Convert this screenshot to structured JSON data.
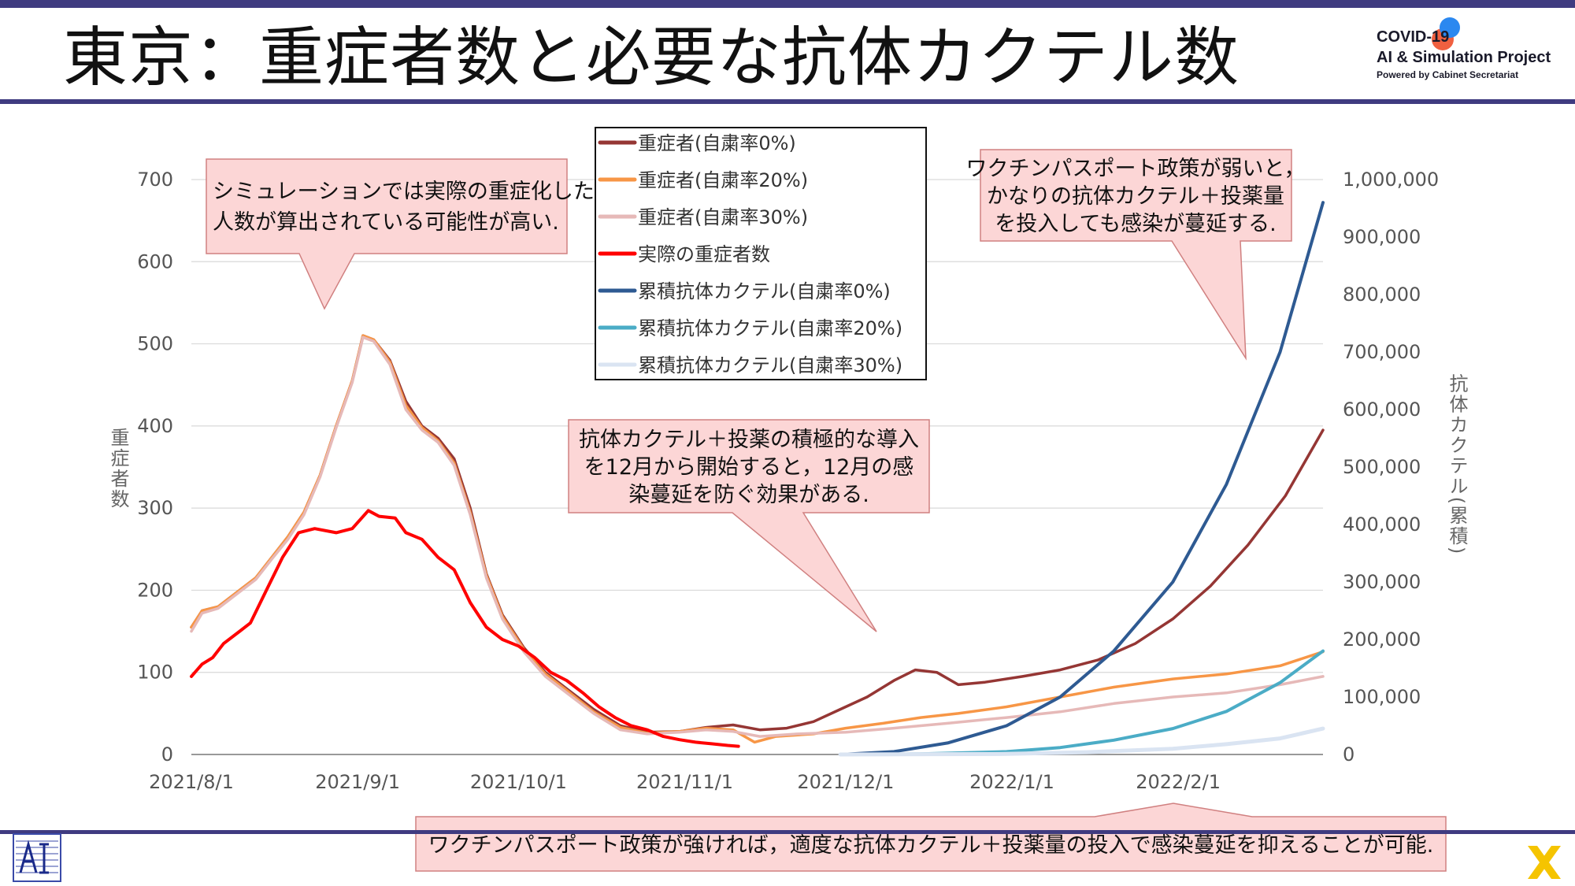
{
  "header": {
    "title": "東京：重症者数と必要な抗体カクテル数",
    "logo_line1": "COVID-19",
    "logo_line2": "AI & Simulation Project",
    "logo_line3": "Powered by Cabinet Secretariat"
  },
  "colors": {
    "rule": "#3f3b80",
    "callout_fill": "#fcd6d6",
    "callout_stroke": "#d08080"
  },
  "chart_data": {
    "type": "line",
    "xlabel": "",
    "ylabel": "重症者数",
    "ylabel_right": "抗体カクテル(累積)",
    "ylim": [
      0,
      700
    ],
    "ylim_right": [
      0,
      1000000
    ],
    "x_start": "2021/8/1",
    "x_end": "2022/2/28",
    "x_ticks": [
      {
        "date": "2021/8/1",
        "label": "2021/8/1"
      },
      {
        "date": "2021/9/1",
        "label": "2021/9/1"
      },
      {
        "date": "2021/10/1",
        "label": "2021/10/1"
      },
      {
        "date": "2021/11/1",
        "label": "2021/11/1"
      },
      {
        "date": "2021/12/1",
        "label": "2021/12/1"
      },
      {
        "date": "2022/1/1",
        "label": "2022/1/1"
      },
      {
        "date": "2022/2/1",
        "label": "2022/2/1"
      }
    ],
    "y_ticks": [
      {
        "v": 0,
        "label": "0"
      },
      {
        "v": 100,
        "label": "100"
      },
      {
        "v": 200,
        "label": "200"
      },
      {
        "v": 300,
        "label": "300"
      },
      {
        "v": 400,
        "label": "400"
      },
      {
        "v": 500,
        "label": "500"
      },
      {
        "v": 600,
        "label": "600"
      },
      {
        "v": 700,
        "label": "700"
      }
    ],
    "y_ticks_right": [
      {
        "v": 0,
        "label": "0"
      },
      {
        "v": 100000,
        "label": "100,000"
      },
      {
        "v": 200000,
        "label": "200,000"
      },
      {
        "v": 300000,
        "label": "300,000"
      },
      {
        "v": 400000,
        "label": "400,000"
      },
      {
        "v": 500000,
        "label": "500,000"
      },
      {
        "v": 600000,
        "label": "600,000"
      },
      {
        "v": 700000,
        "label": "700,000"
      },
      {
        "v": 800000,
        "label": "800,000"
      },
      {
        "v": 900000,
        "label": "900,000"
      },
      {
        "v": 1000000,
        "label": "1,000,000"
      }
    ],
    "grid": true,
    "legend_position": "top-center",
    "series": [
      {
        "name": "重症者(自粛率0%)",
        "axis": "left",
        "color": "#953634",
        "width": 3.5,
        "points": [
          [
            "2021/8/1",
            155
          ],
          [
            "2021/8/3",
            175
          ],
          [
            "2021/8/6",
            180
          ],
          [
            "2021/8/10",
            200
          ],
          [
            "2021/8/13",
            215
          ],
          [
            "2021/8/16",
            240
          ],
          [
            "2021/8/19",
            265
          ],
          [
            "2021/8/22",
            295
          ],
          [
            "2021/8/25",
            340
          ],
          [
            "2021/8/28",
            400
          ],
          [
            "2021/8/31",
            455
          ],
          [
            "2021/9/2",
            510
          ],
          [
            "2021/9/4",
            505
          ],
          [
            "2021/9/7",
            480
          ],
          [
            "2021/9/10",
            430
          ],
          [
            "2021/9/13",
            400
          ],
          [
            "2021/9/16",
            385
          ],
          [
            "2021/9/19",
            360
          ],
          [
            "2021/9/22",
            300
          ],
          [
            "2021/9/25",
            220
          ],
          [
            "2021/9/28",
            170
          ],
          [
            "2021/10/2",
            130
          ],
          [
            "2021/10/6",
            100
          ],
          [
            "2021/10/10",
            80
          ],
          [
            "2021/10/15",
            55
          ],
          [
            "2021/10/20",
            35
          ],
          [
            "2021/10/25",
            27
          ],
          [
            "2021/10/31",
            28
          ],
          [
            "2021/11/5",
            33
          ],
          [
            "2021/11/10",
            36
          ],
          [
            "2021/11/15",
            30
          ],
          [
            "2021/11/20",
            32
          ],
          [
            "2021/11/25",
            40
          ],
          [
            "2021/11/30",
            55
          ],
          [
            "2021/12/5",
            70
          ],
          [
            "2021/12/10",
            90
          ],
          [
            "2021/12/14",
            103
          ],
          [
            "2021/12/18",
            100
          ],
          [
            "2021/12/22",
            85
          ],
          [
            "2021/12/27",
            88
          ],
          [
            "2022/1/3",
            95
          ],
          [
            "2022/1/10",
            103
          ],
          [
            "2022/1/17",
            115
          ],
          [
            "2022/1/24",
            135
          ],
          [
            "2022/1/31",
            165
          ],
          [
            "2022/2/7",
            205
          ],
          [
            "2022/2/14",
            255
          ],
          [
            "2022/2/21",
            315
          ],
          [
            "2022/2/28",
            395
          ]
        ]
      },
      {
        "name": "重症者(自粛率20%)",
        "axis": "left",
        "color": "#f79646",
        "width": 3.5,
        "points": [
          [
            "2021/8/1",
            155
          ],
          [
            "2021/8/3",
            175
          ],
          [
            "2021/8/6",
            180
          ],
          [
            "2021/8/10",
            200
          ],
          [
            "2021/8/13",
            215
          ],
          [
            "2021/8/16",
            240
          ],
          [
            "2021/8/19",
            265
          ],
          [
            "2021/8/22",
            295
          ],
          [
            "2021/8/25",
            340
          ],
          [
            "2021/8/28",
            400
          ],
          [
            "2021/8/31",
            455
          ],
          [
            "2021/9/2",
            510
          ],
          [
            "2021/9/4",
            505
          ],
          [
            "2021/9/7",
            478
          ],
          [
            "2021/9/10",
            425
          ],
          [
            "2021/9/13",
            398
          ],
          [
            "2021/9/16",
            382
          ],
          [
            "2021/9/19",
            355
          ],
          [
            "2021/9/22",
            295
          ],
          [
            "2021/9/25",
            218
          ],
          [
            "2021/9/28",
            168
          ],
          [
            "2021/10/2",
            128
          ],
          [
            "2021/10/6",
            98
          ],
          [
            "2021/10/10",
            78
          ],
          [
            "2021/10/15",
            52
          ],
          [
            "2021/10/20",
            33
          ],
          [
            "2021/10/25",
            26
          ],
          [
            "2021/10/31",
            28
          ],
          [
            "2021/11/5",
            32
          ],
          [
            "2021/11/10",
            30
          ],
          [
            "2021/11/14",
            15
          ],
          [
            "2021/11/18",
            22
          ],
          [
            "2021/11/25",
            25
          ],
          [
            "2021/12/1",
            32
          ],
          [
            "2021/12/8",
            38
          ],
          [
            "2021/12/15",
            45
          ],
          [
            "2021/12/22",
            50
          ],
          [
            "2021/12/31",
            58
          ],
          [
            "2022/1/10",
            70
          ],
          [
            "2022/1/20",
            82
          ],
          [
            "2022/1/31",
            92
          ],
          [
            "2022/2/10",
            98
          ],
          [
            "2022/2/20",
            108
          ],
          [
            "2022/2/28",
            125
          ]
        ]
      },
      {
        "name": "重症者(自粛率30%)",
        "axis": "left",
        "color": "#e6b9b8",
        "width": 3.5,
        "points": [
          [
            "2021/8/1",
            150
          ],
          [
            "2021/8/3",
            172
          ],
          [
            "2021/8/6",
            178
          ],
          [
            "2021/8/10",
            198
          ],
          [
            "2021/8/13",
            213
          ],
          [
            "2021/8/16",
            238
          ],
          [
            "2021/8/19",
            262
          ],
          [
            "2021/8/22",
            292
          ],
          [
            "2021/8/25",
            338
          ],
          [
            "2021/8/28",
            398
          ],
          [
            "2021/8/31",
            453
          ],
          [
            "2021/9/2",
            508
          ],
          [
            "2021/9/4",
            503
          ],
          [
            "2021/9/7",
            475
          ],
          [
            "2021/9/10",
            420
          ],
          [
            "2021/9/13",
            395
          ],
          [
            "2021/9/16",
            380
          ],
          [
            "2021/9/19",
            352
          ],
          [
            "2021/9/22",
            292
          ],
          [
            "2021/9/25",
            215
          ],
          [
            "2021/9/28",
            165
          ],
          [
            "2021/10/2",
            125
          ],
          [
            "2021/10/6",
            95
          ],
          [
            "2021/10/10",
            75
          ],
          [
            "2021/10/15",
            50
          ],
          [
            "2021/10/20",
            30
          ],
          [
            "2021/10/25",
            25
          ],
          [
            "2021/10/31",
            27
          ],
          [
            "2021/11/5",
            30
          ],
          [
            "2021/11/10",
            28
          ],
          [
            "2021/11/15",
            22
          ],
          [
            "2021/11/22",
            25
          ],
          [
            "2021/12/1",
            27
          ],
          [
            "2021/12/10",
            32
          ],
          [
            "2021/12/20",
            38
          ],
          [
            "2021/12/31",
            45
          ],
          [
            "2022/1/10",
            52
          ],
          [
            "2022/1/20",
            62
          ],
          [
            "2022/1/31",
            70
          ],
          [
            "2022/2/10",
            75
          ],
          [
            "2022/2/20",
            85
          ],
          [
            "2022/2/28",
            95
          ]
        ]
      },
      {
        "name": "実際の重症者数",
        "axis": "left",
        "color": "#ff0000",
        "width": 4,
        "points": [
          [
            "2021/8/1",
            95
          ],
          [
            "2021/8/3",
            110
          ],
          [
            "2021/8/5",
            118
          ],
          [
            "2021/8/7",
            135
          ],
          [
            "2021/8/10",
            150
          ],
          [
            "2021/8/12",
            160
          ],
          [
            "2021/8/15",
            200
          ],
          [
            "2021/8/18",
            240
          ],
          [
            "2021/8/21",
            270
          ],
          [
            "2021/8/24",
            275
          ],
          [
            "2021/8/28",
            270
          ],
          [
            "2021/8/31",
            275
          ],
          [
            "2021/9/3",
            297
          ],
          [
            "2021/9/5",
            290
          ],
          [
            "2021/9/8",
            288
          ],
          [
            "2021/9/10",
            270
          ],
          [
            "2021/9/13",
            262
          ],
          [
            "2021/9/16",
            240
          ],
          [
            "2021/9/19",
            225
          ],
          [
            "2021/9/22",
            185
          ],
          [
            "2021/9/25",
            155
          ],
          [
            "2021/9/28",
            140
          ],
          [
            "2021/10/1",
            132
          ],
          [
            "2021/10/4",
            118
          ],
          [
            "2021/10/7",
            100
          ],
          [
            "2021/10/10",
            90
          ],
          [
            "2021/10/13",
            75
          ],
          [
            "2021/10/16",
            58
          ],
          [
            "2021/10/19",
            45
          ],
          [
            "2021/10/22",
            35
          ],
          [
            "2021/10/25",
            30
          ],
          [
            "2021/10/28",
            22
          ],
          [
            "2021/10/31",
            18
          ],
          [
            "2021/11/3",
            15
          ],
          [
            "2021/11/6",
            13
          ],
          [
            "2021/11/9",
            11
          ],
          [
            "2021/11/11",
            10
          ]
        ]
      },
      {
        "name": "累積抗体カクテル(自粛率0%)",
        "axis": "right",
        "color": "#2e5a92",
        "width": 4,
        "points": [
          [
            "2021/11/30",
            0
          ],
          [
            "2021/12/10",
            5000
          ],
          [
            "2021/12/20",
            20000
          ],
          [
            "2021/12/31",
            50000
          ],
          [
            "2022/1/10",
            100000
          ],
          [
            "2022/1/20",
            180000
          ],
          [
            "2022/1/31",
            300000
          ],
          [
            "2022/2/10",
            470000
          ],
          [
            "2022/2/20",
            700000
          ],
          [
            "2022/2/28",
            960000
          ]
        ]
      },
      {
        "name": "累積抗体カクテル(自粛率20%)",
        "axis": "right",
        "color": "#4bacc6",
        "width": 4,
        "points": [
          [
            "2021/11/30",
            0
          ],
          [
            "2021/12/15",
            1000
          ],
          [
            "2021/12/31",
            5000
          ],
          [
            "2022/1/10",
            12000
          ],
          [
            "2022/1/20",
            25000
          ],
          [
            "2022/1/31",
            45000
          ],
          [
            "2022/2/10",
            75000
          ],
          [
            "2022/2/20",
            125000
          ],
          [
            "2022/2/28",
            180000
          ]
        ]
      },
      {
        "name": "累積抗体カクテル(自粛率30%)",
        "axis": "right",
        "color": "#dae4f2",
        "width": 5,
        "points": [
          [
            "2021/11/30",
            0
          ],
          [
            "2021/12/31",
            1000
          ],
          [
            "2022/1/15",
            4000
          ],
          [
            "2022/1/31",
            10000
          ],
          [
            "2022/2/10",
            18000
          ],
          [
            "2022/2/20",
            28000
          ],
          [
            "2022/2/28",
            45000
          ]
        ]
      }
    ]
  },
  "callouts": [
    {
      "id": "upper-left",
      "lines": [
        "シミュレーションでは実際の重症化した",
        "人数が算出されている可能性が高い."
      ]
    },
    {
      "id": "middle",
      "lines": [
        "抗体カクテル＋投薬の積極的な導入",
        "を12月から開始すると，12月の感",
        "染蔓延を防ぐ効果がある."
      ]
    },
    {
      "id": "upper-right",
      "lines": [
        "ワクチンパスポート政策が弱いと，",
        "かなりの抗体カクテル＋投薬量",
        "を投入しても感染が蔓延する."
      ]
    },
    {
      "id": "bottom",
      "lines": [
        "ワクチンパスポート政策が強ければ，適度な抗体カクテル＋投薬量の投入で感染蔓延を抑えることが可能."
      ]
    }
  ]
}
